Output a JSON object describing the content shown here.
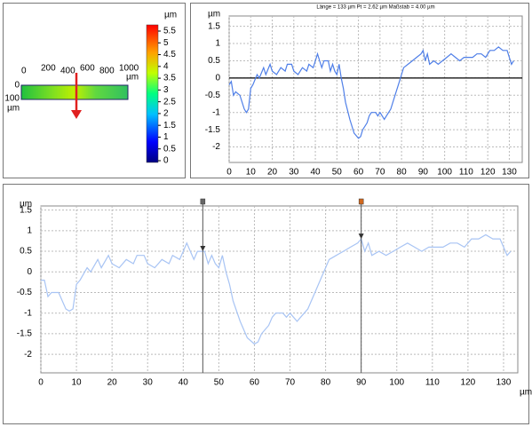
{
  "height_map": {
    "unit": "µm",
    "xticks": [
      "0",
      "200",
      "400",
      "600",
      "800",
      "1000"
    ],
    "x_unit": "µm",
    "yticks": [
      "0",
      "100"
    ],
    "y_unit": "µm",
    "colorbar_ticks": [
      0,
      0.5,
      1,
      1.5,
      2,
      2.5,
      3,
      3.5,
      4,
      4.5,
      5,
      5.5
    ]
  },
  "chart_data": [
    {
      "type": "line",
      "title": "Länge = 133 µm  Pt = 2.62 µm  Maßstab = 4.00 µm",
      "y_label": "µm",
      "zero_line": true,
      "grid": true,
      "xlim": [
        0,
        136
      ],
      "ylim": [
        -2.45,
        1.8
      ],
      "xticks": [
        0,
        10,
        20,
        30,
        40,
        50,
        60,
        70,
        80,
        90,
        100,
        110,
        120,
        130
      ],
      "yticks": [
        1.5,
        1,
        0.5,
        0,
        -0.5,
        -1,
        -1.5,
        -2
      ],
      "series": [
        {
          "color": "#4f7fe8",
          "x": [
            0,
            1,
            2,
            3,
            5,
            7,
            8,
            9,
            10,
            11,
            13,
            14,
            16,
            17,
            19,
            20,
            22,
            24,
            26,
            27,
            29,
            30,
            32,
            34,
            36,
            37,
            39,
            40,
            41,
            42,
            43,
            44,
            45,
            46,
            47,
            48,
            49,
            50,
            51,
            52,
            53,
            54,
            56,
            58,
            60,
            61,
            62,
            64,
            65,
            66,
            68,
            69,
            70,
            72,
            73,
            75,
            77,
            79,
            80,
            81,
            83,
            85,
            87,
            89,
            90,
            91,
            92,
            93,
            95,
            97,
            99,
            101,
            103,
            105,
            107,
            109,
            111,
            113,
            115,
            117,
            119,
            121,
            123,
            125,
            127,
            129,
            131,
            132
          ],
          "values": [
            -0.2,
            -0.1,
            -0.5,
            -0.4,
            -0.5,
            -0.9,
            -1.0,
            -0.9,
            -0.3,
            -0.2,
            0.1,
            0,
            0.3,
            0.1,
            0.4,
            0.2,
            0.1,
            0.3,
            0.2,
            0.4,
            0.4,
            0.2,
            0.1,
            0.3,
            0.2,
            0.4,
            0.3,
            0.5,
            0.7,
            0.5,
            0.3,
            0.5,
            0.5,
            0.5,
            0.2,
            0.4,
            0.2,
            0.1,
            0.4,
            0,
            -0.3,
            -0.7,
            -1.2,
            -1.6,
            -1.75,
            -1.7,
            -1.5,
            -1.3,
            -1.1,
            -1.0,
            -1.0,
            -1.1,
            -1.0,
            -1.2,
            -1.1,
            -0.9,
            -0.5,
            -0.1,
            0.1,
            0.3,
            0.4,
            0.5,
            0.6,
            0.7,
            0.8,
            0.5,
            0.7,
            0.4,
            0.5,
            0.4,
            0.5,
            0.6,
            0.7,
            0.6,
            0.5,
            0.6,
            0.6,
            0.6,
            0.7,
            0.7,
            0.6,
            0.8,
            0.8,
            0.9,
            0.8,
            0.8,
            0.4,
            0.5
          ]
        }
      ]
    },
    {
      "type": "line",
      "y_label": "µm",
      "x_label": "µm",
      "zero_line": false,
      "grid": true,
      "xlim": [
        0,
        134
      ],
      "ylim": [
        -2.45,
        1.6
      ],
      "xticks": [
        0,
        10,
        20,
        30,
        40,
        50,
        60,
        70,
        80,
        90,
        100,
        110,
        120,
        130
      ],
      "yticks": [
        1.5,
        1,
        0.5,
        0,
        -0.5,
        -1,
        -1.5,
        -2
      ],
      "cursors": [
        {
          "x": 45.5,
          "color": "#666666"
        },
        {
          "x": 90,
          "color": "#d2691e"
        }
      ],
      "series": [
        {
          "color": "#a8c4f4",
          "x": [
            0,
            1,
            2,
            3,
            5,
            7,
            8,
            9,
            10,
            11,
            13,
            14,
            16,
            17,
            19,
            20,
            22,
            24,
            26,
            27,
            29,
            30,
            32,
            34,
            36,
            37,
            39,
            40,
            41,
            42,
            43,
            44,
            45,
            46,
            47,
            48,
            49,
            50,
            51,
            52,
            53,
            54,
            56,
            58,
            60,
            61,
            62,
            64,
            65,
            66,
            68,
            69,
            70,
            72,
            73,
            75,
            77,
            79,
            80,
            81,
            83,
            85,
            87,
            89,
            90,
            91,
            92,
            93,
            95,
            97,
            99,
            101,
            103,
            105,
            107,
            109,
            111,
            113,
            115,
            117,
            119,
            121,
            123,
            125,
            127,
            129,
            131,
            132
          ],
          "values": [
            -0.2,
            -0.2,
            -0.6,
            -0.5,
            -0.5,
            -0.9,
            -0.95,
            -0.9,
            -0.3,
            -0.2,
            0.1,
            0,
            0.3,
            0.1,
            0.4,
            0.2,
            0.1,
            0.3,
            0.2,
            0.4,
            0.4,
            0.2,
            0.1,
            0.3,
            0.2,
            0.4,
            0.3,
            0.5,
            0.7,
            0.5,
            0.3,
            0.5,
            0.5,
            0.5,
            0.2,
            0.4,
            0.2,
            0.1,
            0.4,
            0,
            -0.3,
            -0.7,
            -1.2,
            -1.6,
            -1.75,
            -1.7,
            -1.5,
            -1.3,
            -1.1,
            -1.0,
            -1.0,
            -1.1,
            -1.0,
            -1.2,
            -1.1,
            -0.9,
            -0.5,
            -0.1,
            0.1,
            0.3,
            0.4,
            0.5,
            0.6,
            0.7,
            0.8,
            0.5,
            0.7,
            0.4,
            0.5,
            0.4,
            0.5,
            0.6,
            0.7,
            0.6,
            0.5,
            0.6,
            0.6,
            0.6,
            0.7,
            0.7,
            0.6,
            0.8,
            0.8,
            0.9,
            0.8,
            0.8,
            0.4,
            0.5
          ]
        }
      ]
    }
  ]
}
